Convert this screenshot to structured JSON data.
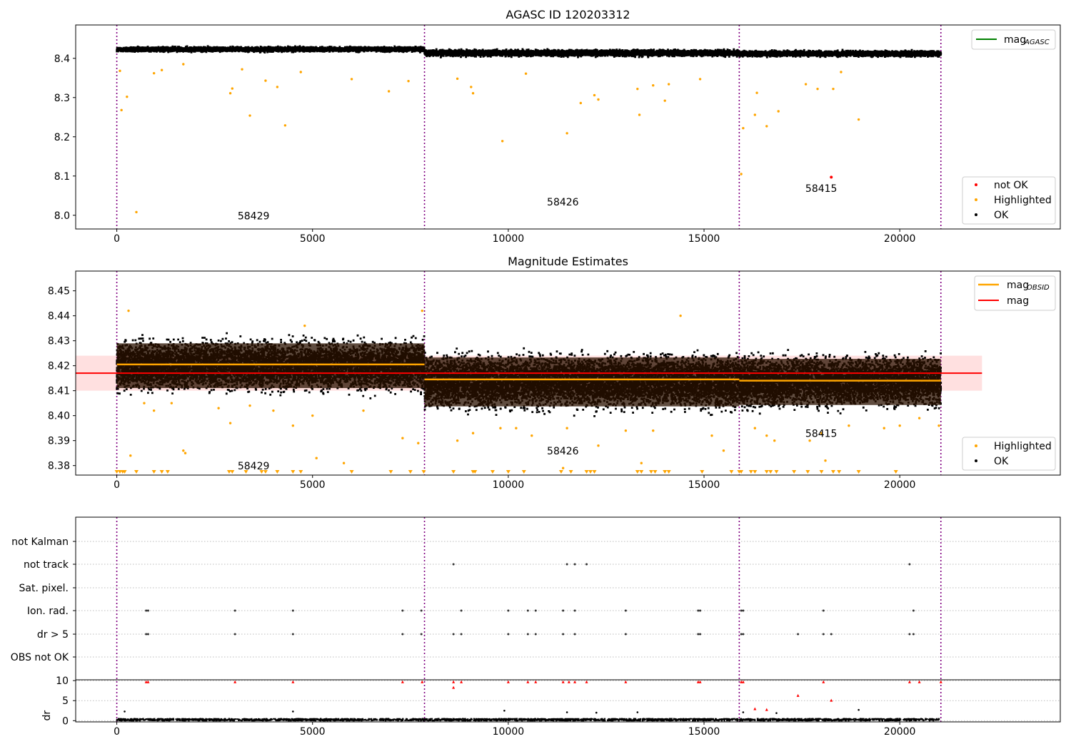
{
  "chart_data": [
    {
      "type": "scatter",
      "title": "AGASC ID 120203312",
      "xlim": [
        -1050,
        24100
      ],
      "ylim": [
        7.965,
        8.485
      ],
      "xticks": [
        0,
        5000,
        10000,
        15000,
        20000
      ],
      "yticks": [
        8.0,
        8.1,
        8.2,
        8.3,
        8.4
      ],
      "ytick_labels": [
        "8.0",
        "8.1",
        "8.2",
        "8.3",
        "8.4"
      ],
      "vlines": [
        0,
        7860,
        15900,
        21050
      ],
      "obsids": [
        {
          "label": "58429",
          "x": 3900,
          "y": 7.99
        },
        {
          "label": "58426",
          "x": 11800,
          "y": 8.025
        },
        {
          "label": "58415",
          "x": 18400,
          "y": 8.06
        }
      ],
      "series": [
        {
          "name": "OK",
          "color": "#000000",
          "bands": [
            {
              "x": [
                0,
                7860
              ],
              "y": [
                8.413,
                8.433
              ]
            },
            {
              "x": [
                7860,
                15900
              ],
              "y": [
                8.4,
                8.427
              ]
            },
            {
              "x": [
                15900,
                21050
              ],
              "y": [
                8.4,
                8.424
              ]
            }
          ]
        },
        {
          "name": "Highlighted",
          "color": "#ffa500",
          "points": [
            [
              80,
              8.368
            ],
            [
              120,
              8.268
            ],
            [
              260,
              8.302
            ],
            [
              500,
              8.008
            ],
            [
              950,
              8.362
            ],
            [
              1150,
              8.37
            ],
            [
              1700,
              8.385
            ],
            [
              2900,
              8.311
            ],
            [
              2950,
              8.323
            ],
            [
              3200,
              8.372
            ],
            [
              3400,
              8.254
            ],
            [
              3800,
              8.343
            ],
            [
              4100,
              8.327
            ],
            [
              4300,
              8.229
            ],
            [
              4700,
              8.365
            ],
            [
              6000,
              8.347
            ],
            [
              6950,
              8.316
            ],
            [
              7450,
              8.342
            ],
            [
              8700,
              8.348
            ],
            [
              9050,
              8.327
            ],
            [
              9100,
              8.311
            ],
            [
              9850,
              8.189
            ],
            [
              10450,
              8.361
            ],
            [
              11500,
              8.209
            ],
            [
              11850,
              8.286
            ],
            [
              12200,
              8.306
            ],
            [
              12300,
              8.295
            ],
            [
              13350,
              8.256
            ],
            [
              13300,
              8.322
            ],
            [
              13700,
              8.331
            ],
            [
              14000,
              8.292
            ],
            [
              14100,
              8.334
            ],
            [
              14900,
              8.347
            ],
            [
              15950,
              8.105
            ],
            [
              16000,
              8.222
            ],
            [
              16300,
              8.256
            ],
            [
              16350,
              8.312
            ],
            [
              16600,
              8.227
            ],
            [
              16900,
              8.265
            ],
            [
              17600,
              8.334
            ],
            [
              17900,
              8.322
            ],
            [
              18300,
              8.322
            ],
            [
              18950,
              8.244
            ],
            [
              18500,
              8.365
            ]
          ]
        },
        {
          "name": "not OK",
          "color": "#ff0000",
          "points": [
            [
              18250,
              8.097
            ]
          ]
        }
      ],
      "legends": [
        {
          "position": "top-right",
          "entries": [
            {
              "name": "mag",
              "sub": "AGASC",
              "kind": "line",
              "color": "#008000"
            }
          ]
        },
        {
          "position": "lower-right",
          "entries": [
            {
              "name": "not OK",
              "kind": "marker",
              "color": "#ff0000"
            },
            {
              "name": "Highlighted",
              "kind": "marker",
              "color": "#ffa500"
            },
            {
              "name": "OK",
              "kind": "marker",
              "color": "#000000"
            }
          ]
        }
      ]
    },
    {
      "type": "scatter",
      "title": "Magnitude Estimates",
      "xlim": [
        -1050,
        24100
      ],
      "ylim": [
        8.3762,
        8.4579
      ],
      "xticks": [
        0,
        5000,
        10000,
        15000,
        20000
      ],
      "yticks": [
        8.38,
        8.39,
        8.4,
        8.41,
        8.42,
        8.43,
        8.44,
        8.45
      ],
      "ytick_labels": [
        "8.38",
        "8.39",
        "8.40",
        "8.41",
        "8.42",
        "8.43",
        "8.44",
        "8.45"
      ],
      "vlines": [
        0,
        7860,
        15900,
        21050
      ],
      "mag": {
        "value": 8.417,
        "band": [
          8.41,
          8.424
        ],
        "x_range": [
          -1050,
          22100
        ],
        "color": "#ff0000"
      },
      "mag_obsid": [
        {
          "x": [
            0,
            7860
          ],
          "y": 8.4205
        },
        {
          "x": [
            7860,
            15900
          ],
          "y": 8.4145
        },
        {
          "x": [
            15900,
            21050
          ],
          "y": 8.414
        }
      ],
      "obsids": [
        {
          "label": "58429",
          "x": 3900,
          "y": 8.3785
        },
        {
          "label": "58426",
          "x": 11800,
          "y": 8.3845
        },
        {
          "label": "58415",
          "x": 18400,
          "y": 8.3915
        }
      ],
      "series": [
        {
          "name": "OK",
          "color": "#000000",
          "bands": [
            {
              "x": [
                0,
                7860
              ],
              "y": [
                8.404,
                8.436
              ]
            },
            {
              "x": [
                7860,
                15900
              ],
              "y": [
                8.396,
                8.431
              ]
            },
            {
              "x": [
                15900,
                21050
              ],
              "y": [
                8.397,
                8.43
              ]
            }
          ]
        },
        {
          "name": "Highlighted",
          "color": "#ffa500",
          "points": [
            [
              300,
              8.442
            ],
            [
              350,
              8.384
            ],
            [
              700,
              8.405
            ],
            [
              950,
              8.402
            ],
            [
              1400,
              8.405
            ],
            [
              1700,
              8.386
            ],
            [
              1750,
              8.385
            ],
            [
              2600,
              8.403
            ],
            [
              2900,
              8.397
            ],
            [
              3400,
              8.404
            ],
            [
              4000,
              8.402
            ],
            [
              4500,
              8.396
            ],
            [
              4800,
              8.436
            ],
            [
              5000,
              8.4
            ],
            [
              5100,
              8.383
            ],
            [
              5800,
              8.381
            ],
            [
              6300,
              8.402
            ],
            [
              7300,
              8.391
            ],
            [
              7700,
              8.389
            ],
            [
              7800,
              8.442
            ],
            [
              8700,
              8.39
            ],
            [
              9100,
              8.393
            ],
            [
              9800,
              8.395
            ],
            [
              10200,
              8.395
            ],
            [
              10600,
              8.392
            ],
            [
              11400,
              8.379
            ],
            [
              11500,
              8.395
            ],
            [
              12300,
              8.388
            ],
            [
              13000,
              8.394
            ],
            [
              13400,
              8.381
            ],
            [
              13700,
              8.394
            ],
            [
              14400,
              8.44
            ],
            [
              15200,
              8.392
            ],
            [
              15500,
              8.386
            ],
            [
              16300,
              8.395
            ],
            [
              16600,
              8.392
            ],
            [
              16800,
              8.39
            ],
            [
              17700,
              8.39
            ],
            [
              18000,
              8.393
            ],
            [
              18100,
              8.382
            ],
            [
              18700,
              8.396
            ],
            [
              19600,
              8.395
            ],
            [
              20000,
              8.396
            ],
            [
              20500,
              8.399
            ],
            [
              21000,
              8.396
            ]
          ]
        }
      ],
      "clipped_markers": [
        0,
        80,
        150,
        200,
        500,
        950,
        1150,
        1300,
        2870,
        2950,
        3300,
        3700,
        3800,
        4100,
        4500,
        4700,
        6000,
        7000,
        7500,
        7840,
        8600,
        9100,
        9150,
        9600,
        10000,
        10400,
        11350,
        11600,
        12000,
        12100,
        12200,
        13300,
        13400,
        13650,
        13750,
        14000,
        14100,
        14950,
        15700,
        15900,
        15950,
        16200,
        16300,
        16600,
        16700,
        16850,
        17300,
        17650,
        18000,
        18300,
        18450,
        18950,
        19900
      ]
    },
    {
      "type": "scatter",
      "title": "",
      "xlim": [
        -1050,
        24100
      ],
      "xticks": [
        0,
        5000,
        10000,
        15000,
        20000
      ],
      "vlines": [
        0,
        7860,
        15900,
        21050
      ],
      "flag_categories": [
        "not Kalman",
        "not track",
        "Sat. pixel.",
        "Ion. rad.",
        "dr > 5",
        "OBS not OK"
      ],
      "flags": {
        "not track": [
          8600,
          11500,
          11700,
          12000,
          20250
        ],
        "Ion. rad.": [
          750,
          800,
          3020,
          4500,
          7300,
          7780,
          8800,
          10000,
          10500,
          10700,
          11400,
          11700,
          13000,
          14850,
          14900,
          15950,
          16000,
          18050,
          20350
        ],
        "dr > 5": [
          750,
          800,
          3020,
          4500,
          7300,
          7780,
          8600,
          8800,
          10000,
          10500,
          10700,
          11400,
          11700,
          13000,
          14850,
          14900,
          15950,
          16000,
          17400,
          18050,
          18250,
          20250,
          20350
        ]
      },
      "dr": {
        "ylabel": "dr",
        "ylim": [
          -0.3,
          10.2
        ],
        "yticks": [
          0,
          5,
          10
        ],
        "ytick_labels": [
          "0",
          "5",
          "10"
        ],
        "ok_range": [
          0,
          0.5
        ],
        "outliers_black": [
          [
            200,
            2.3
          ],
          [
            4500,
            2.3
          ],
          [
            9900,
            2.5
          ],
          [
            11500,
            2.1
          ],
          [
            12250,
            2.0
          ],
          [
            13300,
            2.1
          ],
          [
            16850,
            1.9
          ],
          [
            18950,
            2.7
          ],
          [
            16000,
            2.1
          ]
        ],
        "outliers_red": [
          [
            750,
            9.7
          ],
          [
            800,
            9.7
          ],
          [
            3020,
            9.7
          ],
          [
            4500,
            9.7
          ],
          [
            7300,
            9.7
          ],
          [
            7800,
            9.7
          ],
          [
            8600,
            9.7
          ],
          [
            8600,
            8.3
          ],
          [
            8800,
            9.7
          ],
          [
            10000,
            9.7
          ],
          [
            10500,
            9.7
          ],
          [
            10700,
            9.7
          ],
          [
            11400,
            9.7
          ],
          [
            11550,
            9.7
          ],
          [
            11700,
            9.7
          ],
          [
            12000,
            9.7
          ],
          [
            13000,
            9.7
          ],
          [
            14850,
            9.7
          ],
          [
            14900,
            9.7
          ],
          [
            15950,
            9.7
          ],
          [
            16000,
            9.7
          ],
          [
            16300,
            3.0
          ],
          [
            16600,
            2.8
          ],
          [
            17400,
            6.3
          ],
          [
            18050,
            9.7
          ],
          [
            18250,
            5.1
          ],
          [
            20250,
            9.7
          ],
          [
            20500,
            9.7
          ],
          [
            21050,
            9.7
          ]
        ]
      }
    }
  ]
}
